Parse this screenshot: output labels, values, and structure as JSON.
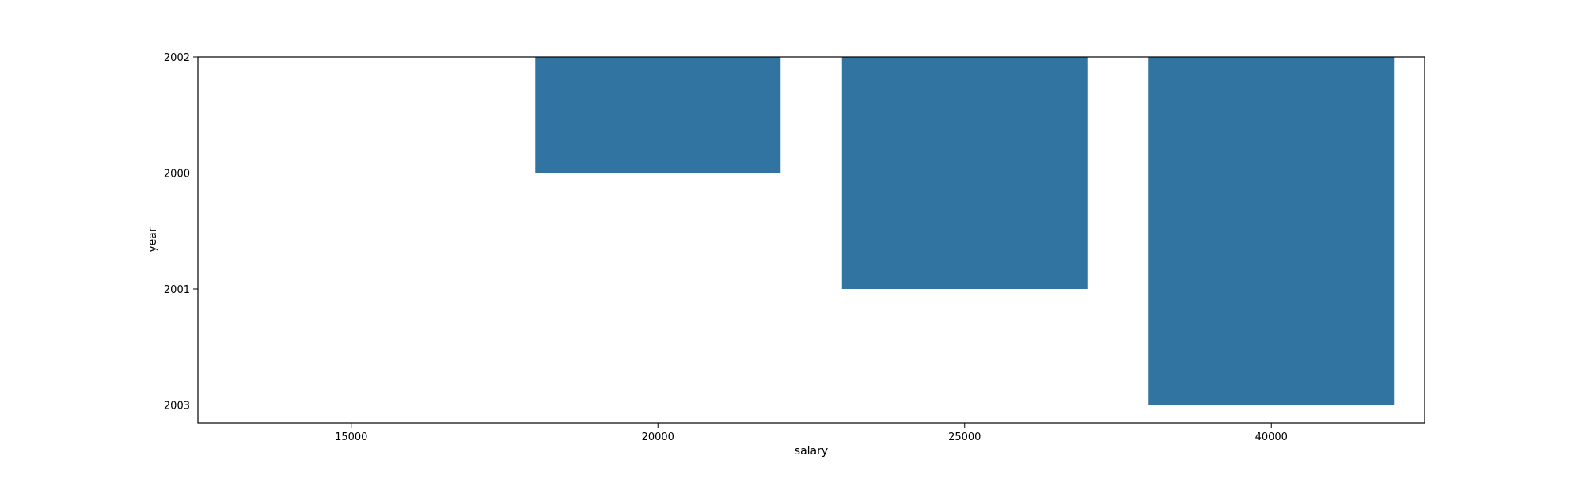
{
  "chart_data": {
    "type": "bar",
    "orientation": "vertical",
    "categories": [
      "15000",
      "20000",
      "25000",
      "40000"
    ],
    "y_categories": [
      "2002",
      "2000",
      "2001",
      "2003"
    ],
    "values": [
      null,
      "2000",
      "2001",
      "2003"
    ],
    "xlabel": "salary",
    "ylabel": "year",
    "bar_color": "#3274a1",
    "grid": false,
    "legend": "none"
  }
}
